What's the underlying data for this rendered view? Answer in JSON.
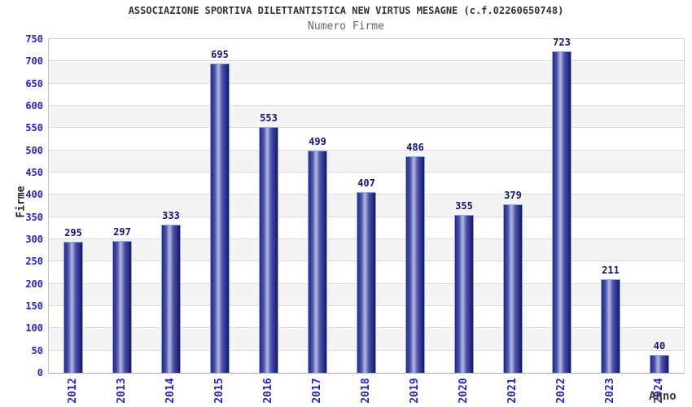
{
  "header": {
    "title": "ASSOCIAZIONE SPORTIVA DILETTANTISTICA NEW VIRTUS MESAGNE (c.f.02260650748)",
    "subtitle": "Numero Firme"
  },
  "chart_data": {
    "type": "bar",
    "title": "Numero Firme",
    "categories": [
      "2012",
      "2013",
      "2014",
      "2015",
      "2016",
      "2017",
      "2018",
      "2019",
      "2020",
      "2021",
      "2022",
      "2023",
      "2024"
    ],
    "values": [
      295,
      297,
      333,
      695,
      553,
      499,
      407,
      486,
      355,
      379,
      723,
      211,
      40
    ],
    "xlabel": "Anno",
    "ylabel": "Firme",
    "ylim": [
      0,
      750
    ],
    "ytick_step": 50,
    "grid": "horizontal-bands",
    "legend": "none",
    "colors": {
      "bar_dark": "#26268c",
      "bar_light": "#b4b9e4",
      "bar_border": "#86acdf",
      "tick_label": "#2424cb",
      "value_label": "#14147d",
      "band_gray": "#f4f4f4",
      "gridline": "#dcdcdc",
      "title": "#333333",
      "subtitle": "#666666"
    }
  }
}
